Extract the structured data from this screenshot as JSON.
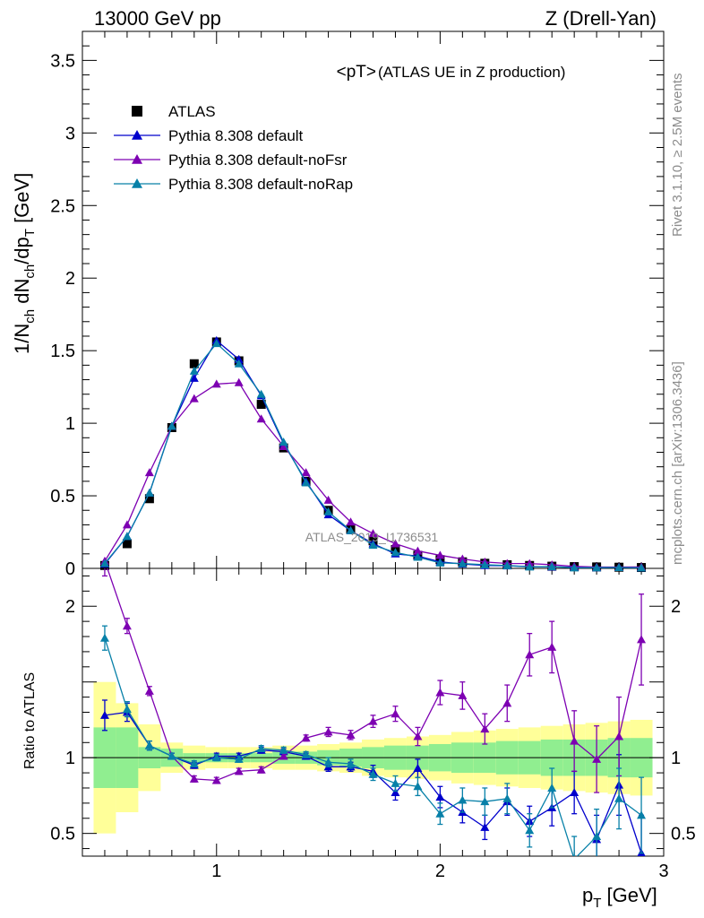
{
  "header": {
    "energy_label": "13000 GeV pp",
    "process_label": "Z (Drell-Yan)"
  },
  "side_labels": {
    "rivet": "Rivet 3.1.10, ≥ 2.5M events",
    "mcplots": "mcplots.cern.ch [arXiv:1306.3436]"
  },
  "plot": {
    "title_main": "<pT>",
    "title_sub": " (ATLAS UE in Z production)",
    "analysis_watermark": "ATLAS_2019_I1736531"
  },
  "chart_data": [
    {
      "type": "line",
      "name": "main",
      "xlabel": "p_T [GeV]",
      "ylabel": "1/N_ch dN_ch/dp_T [GeV]",
      "xlim": [
        0.4,
        3.0
      ],
      "ylim": [
        0,
        3.7
      ],
      "yticks": [
        0,
        0.5,
        1,
        1.5,
        2,
        2.5,
        3,
        3.5
      ],
      "xticks": [
        1,
        2,
        3
      ],
      "x": [
        0.5,
        0.6,
        0.7,
        0.8,
        0.9,
        1.0,
        1.1,
        1.2,
        1.3,
        1.4,
        1.5,
        1.6,
        1.7,
        1.8,
        1.9,
        2.0,
        2.1,
        2.2,
        2.3,
        2.4,
        2.5,
        2.6,
        2.7,
        2.8,
        2.9
      ],
      "legend": [
        "ATLAS",
        "Pythia 8.308 default",
        "Pythia 8.308 default-noFsr",
        "Pythia 8.308 default-noRap"
      ],
      "series": [
        {
          "name": "ATLAS",
          "color": "#000000",
          "marker": "square",
          "values": [
            0.02,
            0.17,
            0.48,
            0.97,
            1.41,
            1.56,
            1.43,
            1.13,
            0.83,
            0.6,
            0.4,
            0.27,
            0.19,
            0.13,
            0.09,
            0.06,
            0.045,
            0.035,
            0.025,
            0.02,
            0.015,
            0.012,
            0.01,
            0.008,
            0.006
          ]
        },
        {
          "name": "Pythia 8.308 default",
          "color": "#0000cc",
          "marker": "triangle",
          "values": [
            0.03,
            0.22,
            0.52,
            0.98,
            1.31,
            1.57,
            1.44,
            1.19,
            0.86,
            0.6,
            0.37,
            0.26,
            0.17,
            0.1,
            0.085,
            0.045,
            0.03,
            0.02,
            0.018,
            0.012,
            0.01,
            0.009,
            0.005,
            0.007,
            0.003
          ]
        },
        {
          "name": "Pythia 8.308 default-noFsr",
          "color": "#7d00b2",
          "marker": "triangle",
          "values": [
            0.05,
            0.3,
            0.66,
            0.98,
            1.17,
            1.27,
            1.28,
            1.03,
            0.84,
            0.66,
            0.47,
            0.32,
            0.24,
            0.17,
            0.12,
            0.09,
            0.065,
            0.044,
            0.034,
            0.033,
            0.025,
            0.014,
            0.009,
            0.009,
            0.01
          ]
        },
        {
          "name": "Pythia 8.308 default-noRap",
          "color": "#0780a8",
          "marker": "triangle",
          "values": [
            0.035,
            0.22,
            0.52,
            0.98,
            1.36,
            1.55,
            1.41,
            1.2,
            0.87,
            0.59,
            0.39,
            0.26,
            0.16,
            0.11,
            0.077,
            0.038,
            0.033,
            0.025,
            0.019,
            0.01,
            0.012,
            0.004,
            0.005,
            0.006,
            0.004
          ]
        }
      ]
    },
    {
      "type": "line",
      "name": "ratio",
      "xlabel": "p_T [GeV]",
      "ylabel": "Ratio to ATLAS",
      "xlim": [
        0.4,
        3.0
      ],
      "ylim": [
        0.35,
        2.25
      ],
      "yticks": [
        0.5,
        1,
        2
      ],
      "x": [
        0.5,
        0.6,
        0.7,
        0.8,
        0.9,
        1.0,
        1.1,
        1.2,
        1.3,
        1.4,
        1.5,
        1.6,
        1.7,
        1.8,
        1.9,
        2.0,
        2.1,
        2.2,
        2.3,
        2.4,
        2.5,
        2.6,
        2.7,
        2.8,
        2.9
      ],
      "band_inner": [
        0.2,
        0.2,
        0.07,
        0.06,
        0.03,
        0.03,
        0.03,
        0.03,
        0.04,
        0.04,
        0.05,
        0.06,
        0.07,
        0.08,
        0.08,
        0.09,
        0.1,
        0.1,
        0.11,
        0.11,
        0.12,
        0.12,
        0.12,
        0.13,
        0.13
      ],
      "band_outer": [
        0.5,
        0.36,
        0.22,
        0.1,
        0.08,
        0.07,
        0.07,
        0.07,
        0.08,
        0.08,
        0.09,
        0.1,
        0.12,
        0.13,
        0.14,
        0.15,
        0.17,
        0.18,
        0.19,
        0.2,
        0.21,
        0.22,
        0.23,
        0.24,
        0.25
      ],
      "series": [
        {
          "name": "Pythia 8.308 default",
          "color": "#0000cc",
          "values": [
            1.28,
            1.3,
            1.08,
            1.01,
            0.95,
            1.01,
            1.01,
            1.05,
            1.04,
            1.01,
            0.94,
            0.94,
            0.91,
            0.77,
            0.93,
            0.74,
            0.64,
            0.54,
            0.71,
            0.58,
            0.67,
            0.77,
            0.46,
            0.82,
            0.37
          ],
          "errors": [
            0.1,
            0.06,
            0.03,
            0.02,
            0.02,
            0.02,
            0.02,
            0.02,
            0.02,
            0.02,
            0.03,
            0.03,
            0.04,
            0.05,
            0.06,
            0.07,
            0.07,
            0.08,
            0.09,
            0.1,
            0.12,
            0.14,
            0.16,
            0.2,
            0.25
          ]
        },
        {
          "name": "Pythia 8.308 default-noFsr",
          "color": "#7d00b2",
          "values": [
            2.3,
            1.87,
            1.44,
            1.01,
            0.86,
            0.85,
            0.91,
            0.92,
            1.01,
            1.13,
            1.17,
            1.15,
            1.24,
            1.29,
            1.14,
            1.43,
            1.41,
            1.19,
            1.36,
            1.68,
            1.73,
            1.11,
            0.99,
            1.14,
            1.78
          ],
          "errors": [
            0.1,
            0.05,
            0.03,
            0.02,
            0.02,
            0.02,
            0.02,
            0.02,
            0.02,
            0.02,
            0.03,
            0.03,
            0.04,
            0.05,
            0.06,
            0.08,
            0.09,
            0.1,
            0.12,
            0.14,
            0.17,
            0.2,
            0.22,
            0.26,
            0.3
          ]
        },
        {
          "name": "Pythia 8.308 default-noRap",
          "color": "#0780a8",
          "values": [
            1.79,
            1.32,
            1.08,
            1.01,
            0.96,
            1.0,
            0.99,
            1.06,
            1.05,
            1.02,
            0.97,
            0.96,
            0.89,
            0.83,
            0.81,
            0.63,
            0.72,
            0.71,
            0.73,
            0.52,
            0.8,
            0.33,
            0.48,
            0.73,
            0.62
          ],
          "errors": [
            0.08,
            0.05,
            0.03,
            0.02,
            0.02,
            0.02,
            0.02,
            0.02,
            0.02,
            0.02,
            0.03,
            0.03,
            0.04,
            0.05,
            0.06,
            0.07,
            0.08,
            0.09,
            0.1,
            0.11,
            0.13,
            0.15,
            0.18,
            0.2,
            0.25
          ]
        }
      ]
    }
  ],
  "colors": {
    "band_inner": "#90ee90",
    "band_outer": "#ffff99"
  }
}
